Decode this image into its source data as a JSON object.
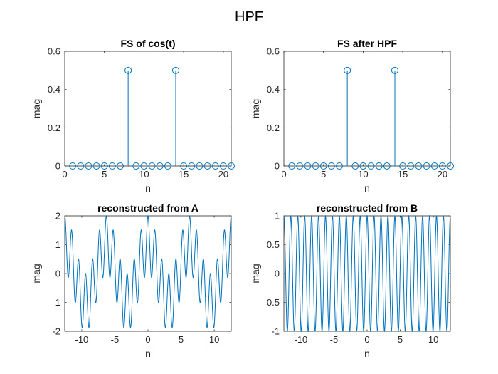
{
  "figure": {
    "title": "HPF",
    "line_color": "#0072BD"
  },
  "chart_data": [
    {
      "type": "stem",
      "title": "FS of cos(t)",
      "xlabel": "n",
      "ylabel": "mag",
      "xlim": [
        0,
        21
      ],
      "ylim": [
        0,
        0.6
      ],
      "xticks": [
        "0",
        "5",
        "10",
        "15",
        "20"
      ],
      "yticks": [
        "0",
        "0.2",
        "0.4",
        "0.6"
      ],
      "x": [
        1,
        2,
        3,
        4,
        5,
        6,
        7,
        8,
        9,
        10,
        11,
        12,
        13,
        14,
        15,
        16,
        17,
        18,
        19,
        20,
        21
      ],
      "values": [
        0,
        0,
        0,
        0,
        0,
        0,
        0,
        0.5,
        0,
        0,
        0,
        0,
        0,
        0.5,
        0,
        0,
        0,
        0,
        0,
        0,
        0
      ]
    },
    {
      "type": "stem",
      "title": "FS after HPF",
      "xlabel": "n",
      "ylabel": "mag",
      "xlim": [
        0,
        21
      ],
      "ylim": [
        0,
        0.6
      ],
      "xticks": [
        "0",
        "5",
        "10",
        "15",
        "20"
      ],
      "yticks": [
        "0",
        "0.2",
        "0.4",
        "0.6"
      ],
      "x": [
        1,
        2,
        3,
        4,
        5,
        6,
        7,
        8,
        9,
        10,
        11,
        12,
        13,
        14,
        15,
        16,
        17,
        18,
        19,
        20,
        21
      ],
      "values": [
        0,
        0,
        0,
        0,
        0,
        0,
        0,
        0.5,
        0,
        0,
        0,
        0,
        0,
        0.5,
        0,
        0,
        0,
        0,
        0,
        0,
        0
      ]
    },
    {
      "type": "line",
      "title": "reconstructed from A",
      "xlabel": "n",
      "ylabel": "mag",
      "xlim": [
        -12.566,
        12.566
      ],
      "ylim": [
        -2,
        2
      ],
      "xticks": [
        "-10",
        "-5",
        "0",
        "5",
        "10"
      ],
      "yticks": [
        "-2",
        "-1",
        "0",
        "1",
        "2"
      ],
      "expression": "cos(t) + cos(6t)",
      "components": [
        {
          "amplitude": 1,
          "frequency": 1
        },
        {
          "amplitude": 1,
          "frequency": 6
        }
      ]
    },
    {
      "type": "line",
      "title": "reconstructed from B",
      "xlabel": "n",
      "ylabel": "mag",
      "xlim": [
        -12.566,
        12.566
      ],
      "ylim": [
        -1,
        1
      ],
      "xticks": [
        "-10",
        "-5",
        "0",
        "5",
        "10"
      ],
      "yticks": [
        "-1",
        "-0.5",
        "0",
        "0.5",
        "1"
      ],
      "expression": "cos(6t)",
      "components": [
        {
          "amplitude": 1,
          "frequency": 6
        }
      ]
    }
  ]
}
